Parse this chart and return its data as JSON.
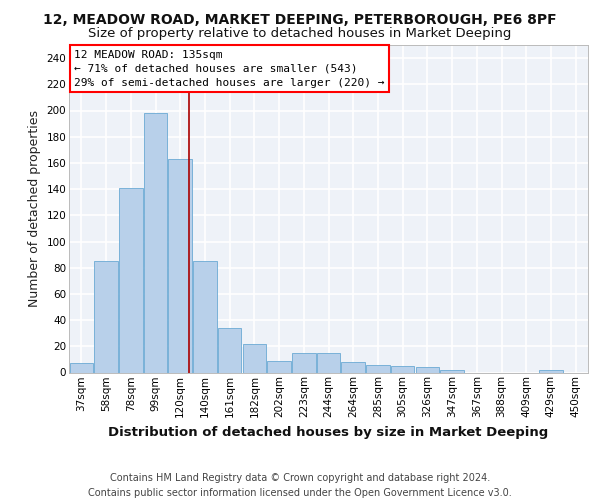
{
  "title_line1": "12, MEADOW ROAD, MARKET DEEPING, PETERBOROUGH, PE6 8PF",
  "title_line2": "Size of property relative to detached houses in Market Deeping",
  "xlabel": "Distribution of detached houses by size in Market Deeping",
  "ylabel": "Number of detached properties",
  "footer_line1": "Contains HM Land Registry data © Crown copyright and database right 2024.",
  "footer_line2": "Contains public sector information licensed under the Open Government Licence v3.0.",
  "categories": [
    "37sqm",
    "58sqm",
    "78sqm",
    "99sqm",
    "120sqm",
    "140sqm",
    "161sqm",
    "182sqm",
    "202sqm",
    "223sqm",
    "244sqm",
    "264sqm",
    "285sqm",
    "305sqm",
    "326sqm",
    "347sqm",
    "367sqm",
    "388sqm",
    "409sqm",
    "429sqm",
    "450sqm"
  ],
  "values": [
    7,
    85,
    141,
    198,
    163,
    85,
    34,
    22,
    9,
    15,
    15,
    8,
    6,
    5,
    4,
    2,
    0,
    0,
    0,
    2,
    0
  ],
  "bar_color": "#b8d0ea",
  "bar_edge_color": "#6aaad4",
  "annotation_text": "12 MEADOW ROAD: 135sqm\n← 71% of detached houses are smaller (543)\n29% of semi-detached houses are larger (220) →",
  "vline_color": "#aa0000",
  "vline_x": 4.37,
  "ylim": [
    0,
    250
  ],
  "yticks": [
    0,
    20,
    40,
    60,
    80,
    100,
    120,
    140,
    160,
    180,
    200,
    220,
    240
  ],
  "background_color": "#eef2f8",
  "grid_color": "#ffffff",
  "title_fontsize": 10,
  "subtitle_fontsize": 9.5,
  "axis_label_fontsize": 9,
  "tick_fontsize": 7.5,
  "annotation_fontsize": 8,
  "footer_fontsize": 7
}
